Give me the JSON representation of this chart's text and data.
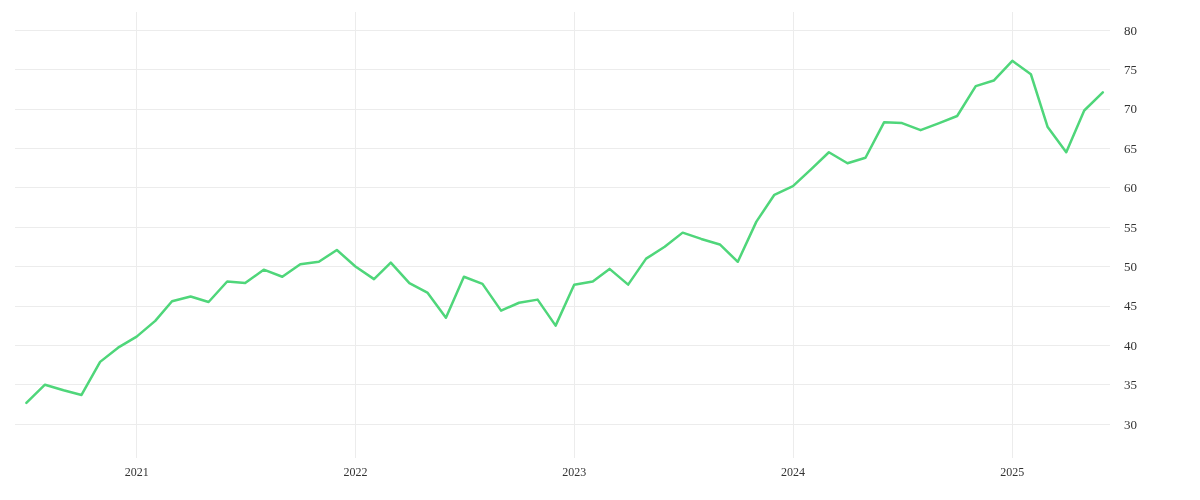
{
  "chart_data": {
    "type": "line",
    "x": [
      "2020-07",
      "2020-08",
      "2020-09",
      "2020-10",
      "2020-11",
      "2020-12",
      "2021-01",
      "2021-02",
      "2021-03",
      "2021-04",
      "2021-05",
      "2021-06",
      "2021-07",
      "2021-08",
      "2021-09",
      "2021-10",
      "2021-11",
      "2021-12",
      "2022-01",
      "2022-02",
      "2022-03",
      "2022-04",
      "2022-05",
      "2022-06",
      "2022-07",
      "2022-08",
      "2022-09",
      "2022-10",
      "2022-11",
      "2022-12",
      "2023-01",
      "2023-02",
      "2023-03",
      "2023-04",
      "2023-05",
      "2023-06",
      "2023-07",
      "2023-08",
      "2023-09",
      "2023-10",
      "2023-11",
      "2023-12",
      "2024-01",
      "2024-02",
      "2024-03",
      "2024-04",
      "2024-05",
      "2024-06",
      "2024-07",
      "2024-08",
      "2024-09",
      "2024-10",
      "2024-11",
      "2024-12",
      "2025-01",
      "2025-02",
      "2025-03",
      "2025-04",
      "2025-05",
      "2025-06"
    ],
    "series": [
      {
        "color": "#4fd67a",
        "values": [
          32.7,
          35.0,
          34.3,
          33.7,
          37.9,
          39.7,
          41.1,
          43.1,
          45.6,
          46.2,
          45.5,
          48.1,
          47.9,
          49.6,
          48.7,
          50.3,
          50.6,
          52.1,
          50.0,
          48.4,
          50.5,
          47.9,
          46.7,
          43.5,
          48.7,
          47.8,
          44.4,
          45.4,
          45.8,
          42.5,
          47.7,
          48.1,
          49.7,
          47.7,
          51.0,
          52.5,
          54.3,
          53.5,
          52.8,
          50.6,
          55.7,
          59.1,
          60.2,
          62.4,
          64.5,
          63.1,
          63.8,
          68.3,
          68.2,
          67.3,
          68.2,
          69.1,
          72.9,
          73.6,
          76.1,
          74.4,
          67.7,
          64.5,
          69.8,
          72.1
        ]
      }
    ],
    "xlim": [
      "2020-06-12",
      "2025-06-13"
    ],
    "xticks": [
      "2021",
      "2022",
      "2023",
      "2024",
      "2025"
    ],
    "ylim": [
      25.7,
      82.3
    ],
    "yticks": [
      30,
      35,
      40,
      45,
      50,
      55,
      60,
      65,
      70,
      75,
      80
    ],
    "grid": true,
    "marker": "none",
    "line_style": "solid"
  }
}
